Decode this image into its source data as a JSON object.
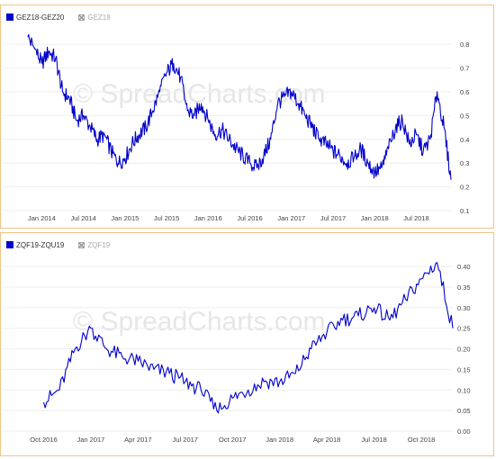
{
  "watermark": "© SpreadCharts.com",
  "colors": {
    "line": "#0000cc",
    "grid": "#eeeeee",
    "frame": "#f0c488"
  },
  "charts": [
    {
      "type": "line",
      "legend": [
        {
          "label": "GEZ18-GEZ20",
          "active": true
        },
        {
          "label": "GEZ18",
          "active": false
        }
      ],
      "xticks": [
        "Jan 2014",
        "Jul 2014",
        "Jan 2015",
        "Jul 2015",
        "Jan 2016",
        "Jul 2016",
        "Jan 2017",
        "Jul 2017",
        "Jan 2018",
        "Jul 2018"
      ],
      "yticks": [
        "0.1",
        "0.2",
        "0.3",
        "0.4",
        "0.5",
        "0.6",
        "0.7",
        "0.8"
      ]
    },
    {
      "type": "line",
      "legend": [
        {
          "label": "ZQF19-ZQU19",
          "active": true
        },
        {
          "label": "ZQF19",
          "active": false
        }
      ],
      "xticks": [
        "Oct 2016",
        "Jan 2017",
        "Apr 2017",
        "Jul 2017",
        "Oct 2017",
        "Jan 2018",
        "Apr 2018",
        "Jul 2018",
        "Oct 2018"
      ],
      "yticks": [
        "0.00",
        "0.05",
        "0.10",
        "0.15",
        "0.20",
        "0.25",
        "0.30",
        "0.35",
        "0.40"
      ]
    }
  ],
  "chart_data": [
    {
      "type": "line",
      "series": [
        {
          "name": "GEZ18-GEZ20",
          "x": [
            "2013-11",
            "2013-12",
            "2014-01",
            "2014-02",
            "2014-03",
            "2014-04",
            "2014-05",
            "2014-06",
            "2014-07",
            "2014-08",
            "2014-09",
            "2014-10",
            "2014-11",
            "2014-12",
            "2015-01",
            "2015-02",
            "2015-03",
            "2015-04",
            "2015-05",
            "2015-06",
            "2015-07",
            "2015-08",
            "2015-09",
            "2015-10",
            "2015-11",
            "2015-12",
            "2016-01",
            "2016-02",
            "2016-03",
            "2016-04",
            "2016-05",
            "2016-06",
            "2016-07",
            "2016-08",
            "2016-09",
            "2016-10",
            "2016-11",
            "2016-12",
            "2017-01",
            "2017-02",
            "2017-03",
            "2017-04",
            "2017-05",
            "2017-06",
            "2017-07",
            "2017-08",
            "2017-09",
            "2017-10",
            "2017-11",
            "2017-12",
            "2018-01",
            "2018-02",
            "2018-03",
            "2018-04",
            "2018-05",
            "2018-06",
            "2018-07",
            "2018-08",
            "2018-09",
            "2018-10",
            "2018-11",
            "2018-12"
          ],
          "y": [
            0.83,
            0.78,
            0.72,
            0.77,
            0.74,
            0.6,
            0.57,
            0.48,
            0.5,
            0.45,
            0.4,
            0.42,
            0.35,
            0.3,
            0.32,
            0.38,
            0.42,
            0.45,
            0.52,
            0.6,
            0.68,
            0.72,
            0.66,
            0.52,
            0.5,
            0.55,
            0.48,
            0.42,
            0.44,
            0.4,
            0.36,
            0.33,
            0.3,
            0.28,
            0.33,
            0.4,
            0.55,
            0.58,
            0.6,
            0.55,
            0.5,
            0.45,
            0.4,
            0.38,
            0.35,
            0.33,
            0.3,
            0.32,
            0.36,
            0.3,
            0.26,
            0.28,
            0.36,
            0.45,
            0.48,
            0.38,
            0.42,
            0.35,
            0.4,
            0.6,
            0.45,
            0.23
          ]
        }
      ],
      "ylim": [
        0.1,
        0.85
      ]
    },
    {
      "type": "line",
      "series": [
        {
          "name": "ZQF19-ZQU19",
          "x": [
            "2016-10",
            "2016-11",
            "2016-12",
            "2017-01",
            "2017-02",
            "2017-03",
            "2017-04",
            "2017-05",
            "2017-06",
            "2017-07",
            "2017-08",
            "2017-09",
            "2017-10",
            "2017-11",
            "2017-12",
            "2018-01",
            "2018-02",
            "2018-03",
            "2018-04",
            "2018-05",
            "2018-06",
            "2018-07",
            "2018-08",
            "2018-09",
            "2018-10",
            "2018-11",
            "2018-12"
          ],
          "y": [
            0.07,
            0.1,
            0.2,
            0.25,
            0.2,
            0.18,
            0.17,
            0.15,
            0.14,
            0.12,
            0.1,
            0.05,
            0.08,
            0.1,
            0.12,
            0.12,
            0.14,
            0.2,
            0.24,
            0.27,
            0.28,
            0.3,
            0.27,
            0.32,
            0.37,
            0.41,
            0.25
          ]
        }
      ],
      "ylim": [
        0.0,
        0.42
      ]
    }
  ]
}
